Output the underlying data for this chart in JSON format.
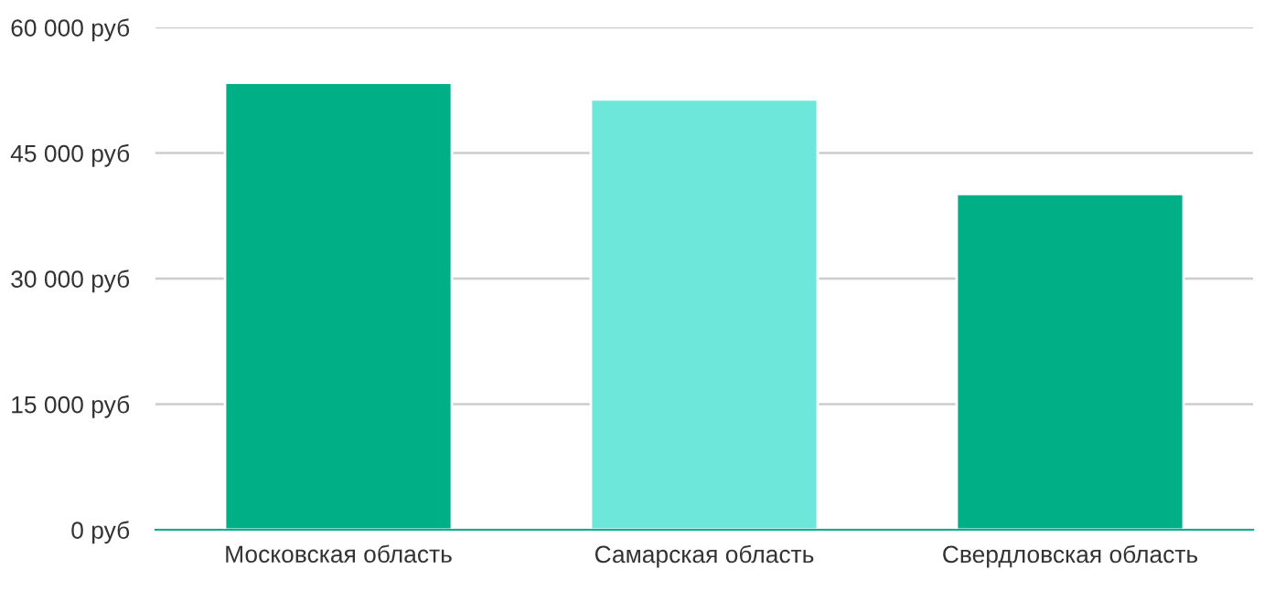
{
  "chart_data": {
    "type": "bar",
    "categories": [
      "Московская область",
      "Самарская область",
      "Свердловская область"
    ],
    "values": [
      53400,
      51400,
      40100
    ],
    "colors": [
      "#00af86",
      "#6ee7db",
      "#00af86"
    ],
    "ylim": [
      0,
      60000
    ],
    "yticks": [
      {
        "value": 0,
        "label": "0 руб"
      },
      {
        "value": 15000,
        "label": "15 000 руб"
      },
      {
        "value": 30000,
        "label": "30 000 руб"
      },
      {
        "value": 45000,
        "label": "45 000 руб"
      },
      {
        "value": 60000,
        "label": "60 000 руб"
      }
    ],
    "grid": "y"
  }
}
